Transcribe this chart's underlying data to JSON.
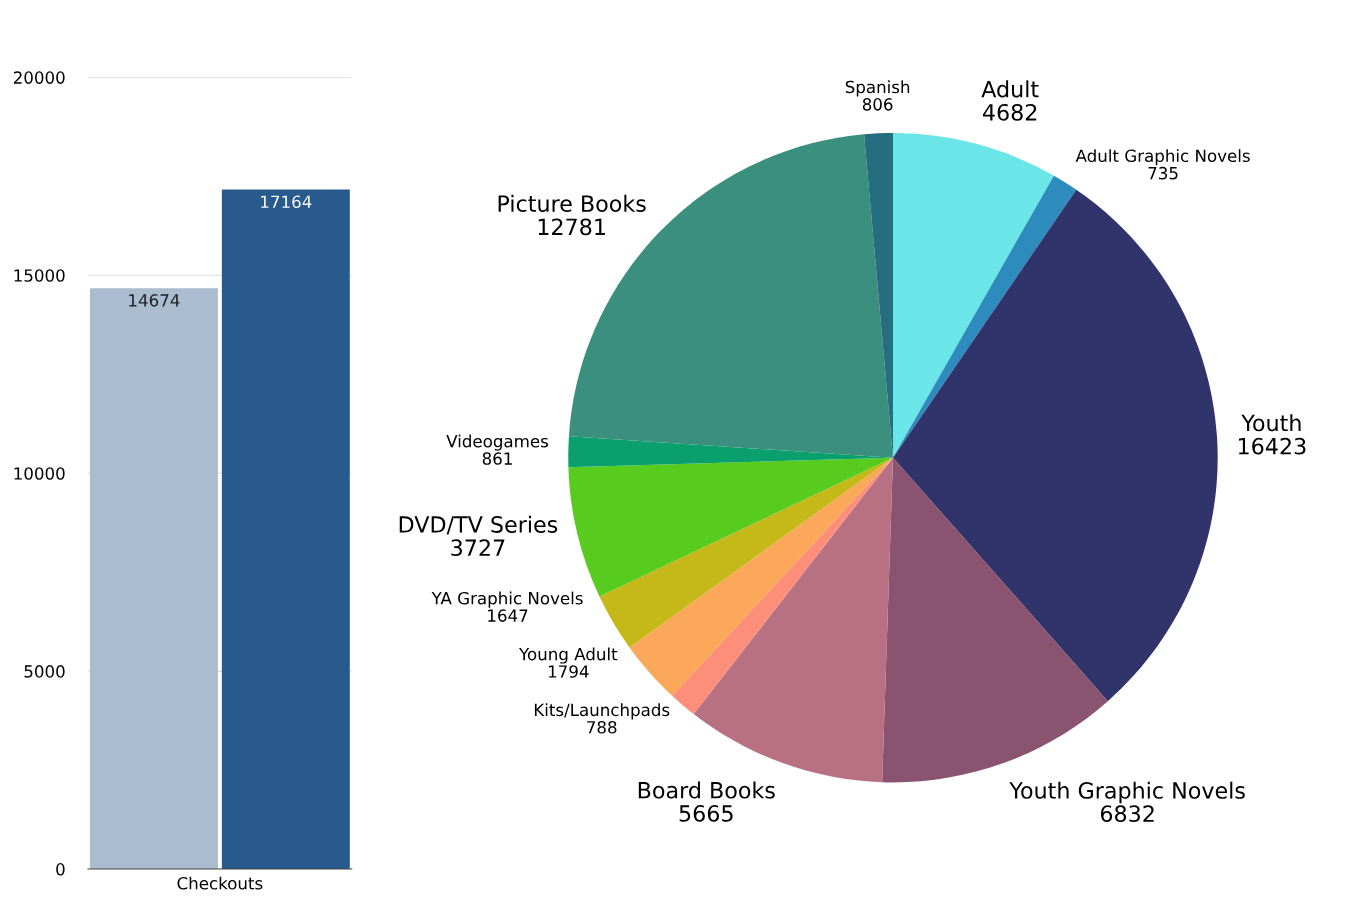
{
  "chart_data": [
    {
      "type": "bar",
      "categories": [
        null,
        null
      ],
      "values": [
        14674,
        17164
      ],
      "colors": [
        "#a9bcd0",
        "#285a8e"
      ],
      "xlabel": "Checkouts",
      "ylim": [
        0,
        20000
      ],
      "yticks": [
        0,
        5000,
        10000,
        15000,
        20000
      ],
      "grid": "y",
      "data_labels": true
    },
    {
      "type": "pie",
      "categories": [
        "Adult",
        "Adult Graphic Novels",
        "Youth",
        "Youth Graphic Novels",
        "Board Books",
        "Kits/Launchpads",
        "Young Adult",
        "YA Graphic Novels",
        "DVD/TV Series",
        "Videogames",
        "Picture Books",
        "Spanish"
      ],
      "values": [
        4682,
        735,
        16423,
        6832,
        5665,
        788,
        1794,
        1647,
        3727,
        861,
        12781,
        806
      ],
      "colors": [
        "#6ae5e8",
        "#2e8bbd",
        "#30346b",
        "#8a5370",
        "#b77183",
        "#fc8e7a",
        "#fca85a",
        "#c4b918",
        "#58cc1e",
        "#0aa06e",
        "#3a8f7e",
        "#246e80"
      ],
      "data_labels": true
    }
  ]
}
